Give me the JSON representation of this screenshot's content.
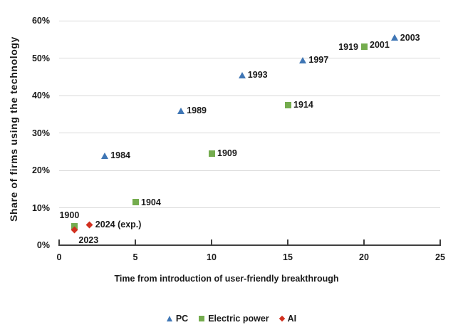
{
  "colors": {
    "pc_blue": "#3f76b5",
    "electric_green": "#74ac4e",
    "ai_red": "#d2301f",
    "gridline": "#d9d9d9",
    "axis": "#404040",
    "label_text": "#1a1a1a"
  },
  "chart_data": {
    "type": "scatter",
    "title": "",
    "xlabel": "Time from introduction of user-friendly breakthrough",
    "ylabel": "Share of firms using the technology",
    "xlim": [
      0,
      25
    ],
    "ylim": [
      0,
      60
    ],
    "grid": "horizontal-only",
    "legend_position": "bottom-center",
    "x_ticks": [
      {
        "value": 0,
        "label": "0"
      },
      {
        "value": 5,
        "label": "5"
      },
      {
        "value": 10,
        "label": "10"
      },
      {
        "value": 15,
        "label": "15"
      },
      {
        "value": 20,
        "label": "20"
      },
      {
        "value": 25,
        "label": "25"
      }
    ],
    "y_ticks": [
      {
        "value": 0,
        "label": "0%"
      },
      {
        "value": 10,
        "label": "10%"
      },
      {
        "value": 20,
        "label": "20%"
      },
      {
        "value": 30,
        "label": "30%"
      },
      {
        "value": 40,
        "label": "40%"
      },
      {
        "value": 50,
        "label": "50%"
      },
      {
        "value": 60,
        "label": "60%"
      }
    ],
    "series": [
      {
        "name": "PC",
        "marker": "triangle",
        "color": "#3f76b5",
        "points": [
          {
            "x": 3,
            "y": 24,
            "label": "1984",
            "label_side": "right"
          },
          {
            "x": 8,
            "y": 36,
            "label": "1989",
            "label_side": "right"
          },
          {
            "x": 12,
            "y": 45.5,
            "label": "1993",
            "label_side": "right"
          },
          {
            "x": 16,
            "y": 49.5,
            "label": "1997",
            "label_side": "right"
          },
          {
            "x": 20,
            "y": 53.5,
            "label": "2001",
            "label_side": "right",
            "marker_visible": false
          },
          {
            "x": 22,
            "y": 55.5,
            "label": "2003",
            "label_side": "right"
          }
        ]
      },
      {
        "name": "Electric power",
        "marker": "square",
        "color": "#74ac4e",
        "points": [
          {
            "x": 1,
            "y": 5,
            "label": "1900",
            "label_side": "above"
          },
          {
            "x": 5,
            "y": 11.5,
            "label": "1904",
            "label_side": "right"
          },
          {
            "x": 10,
            "y": 24.5,
            "label": "1909",
            "label_side": "right"
          },
          {
            "x": 15,
            "y": 37.5,
            "label": "1914",
            "label_side": "right"
          },
          {
            "x": 20,
            "y": 53,
            "label": "1919",
            "label_side": "left"
          }
        ]
      },
      {
        "name": "AI",
        "marker": "diamond",
        "color": "#d2301f",
        "points": [
          {
            "x": 1,
            "y": 4,
            "label": "2023",
            "label_side": "below-right"
          },
          {
            "x": 2,
            "y": 5.5,
            "label": "2024 (exp.)",
            "label_side": "right"
          }
        ]
      }
    ]
  }
}
